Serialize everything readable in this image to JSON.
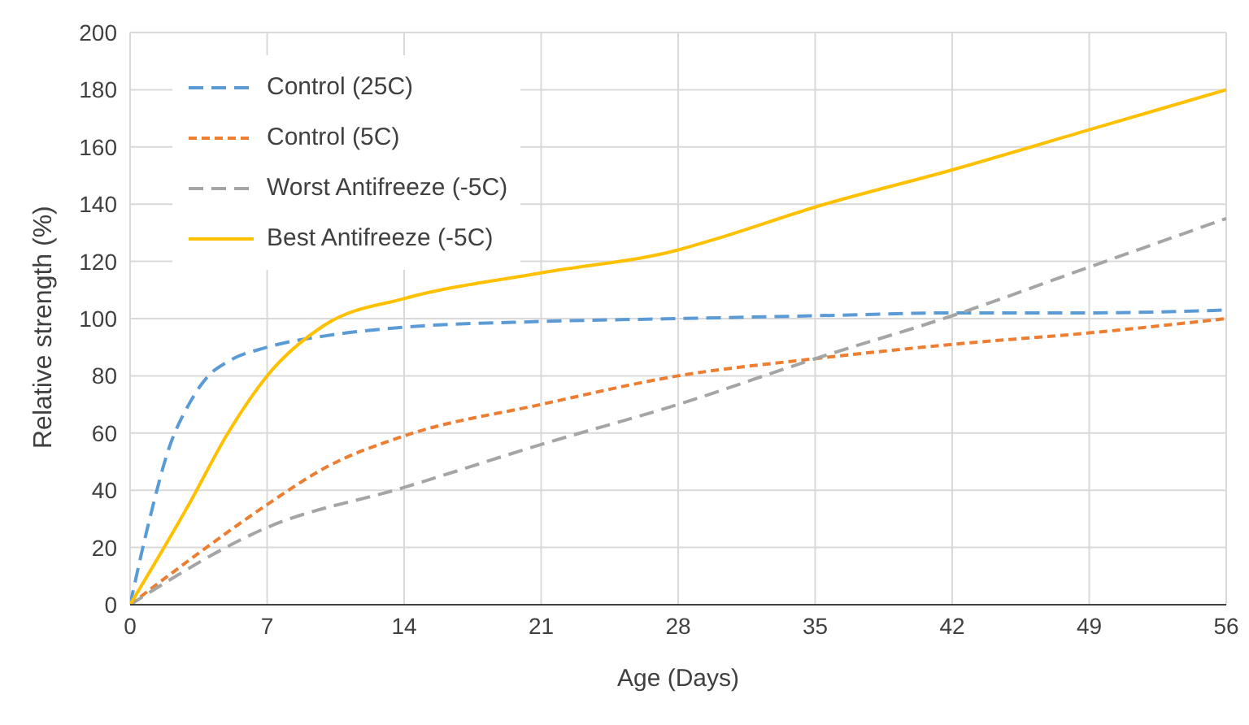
{
  "chart_data": {
    "type": "line",
    "xlabel": "Age (Days)",
    "ylabel": "Relative strength (%)",
    "xlim": [
      0,
      56
    ],
    "xticks": [
      0,
      7,
      14,
      21,
      28,
      35,
      42,
      49,
      56
    ],
    "ylim": [
      0,
      200
    ],
    "yticks": [
      0,
      20,
      40,
      60,
      80,
      100,
      120,
      140,
      160,
      180,
      200
    ],
    "grid": true,
    "legend": "top left",
    "marker": "none",
    "series": [
      {
        "name": "Control (25C)",
        "color": "#5b9bd5",
        "line_style": "dashed",
        "x": [
          0,
          1,
          2,
          3,
          4,
          5,
          7,
          10,
          14,
          21,
          28,
          35,
          42,
          49,
          56
        ],
        "values": [
          0,
          30,
          55,
          70,
          80,
          85,
          90,
          94,
          97,
          99,
          100,
          101,
          102,
          102,
          103
        ]
      },
      {
        "name": "Control (5C)",
        "color": "#ed7d31",
        "line_style": "dotted",
        "x": [
          0,
          3.5,
          7,
          10,
          14,
          21,
          28,
          35,
          42,
          49,
          56
        ],
        "values": [
          0,
          18,
          35,
          48,
          59,
          70,
          80,
          86,
          91,
          95,
          100
        ]
      },
      {
        "name": "Worst Antifreeze (-5C)",
        "color": "#a5a5a5",
        "line_style": "dashed",
        "x": [
          0,
          7,
          14,
          21,
          28,
          35,
          42,
          49,
          56
        ],
        "values": [
          0,
          27,
          41,
          56,
          70,
          86,
          101,
          118,
          135
        ]
      },
      {
        "name": "Best Antifreeze (-5C)",
        "color": "#ffc000",
        "line_style": "solid",
        "x": [
          0,
          3,
          5,
          7,
          10,
          14,
          21,
          28,
          30,
          35,
          42,
          49,
          56
        ],
        "values": [
          0,
          35,
          60,
          80,
          98,
          107,
          116,
          124,
          128,
          139,
          152,
          166,
          180
        ]
      }
    ]
  }
}
